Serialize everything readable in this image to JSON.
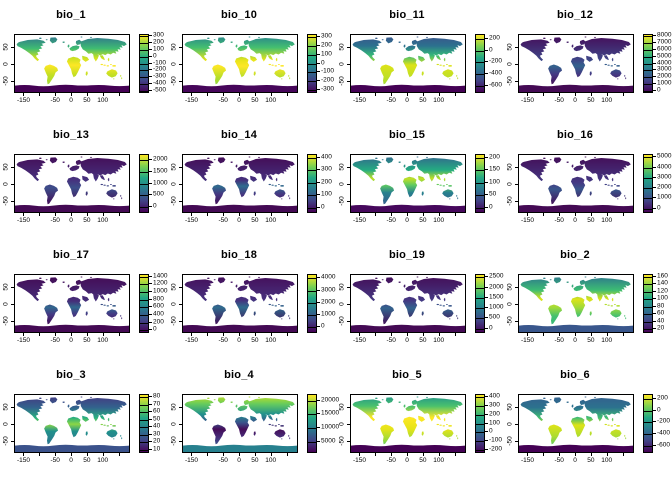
{
  "figure": {
    "background": "#ffffff",
    "grid_rows": 4,
    "grid_cols": 4
  },
  "axes": {
    "x_tick_labels": [
      "-150",
      "-50",
      "0",
      "50",
      "100"
    ],
    "x_tick_lons": [
      -150,
      -50,
      0,
      50,
      100
    ],
    "x_tick_marks": [
      -150,
      -100,
      -50,
      0,
      50,
      100,
      150
    ],
    "y_tick_labels": [
      "50",
      "0",
      "-50"
    ],
    "y_tick_lats": [
      50,
      0,
      -50
    ],
    "xlim": [
      -180,
      180
    ],
    "ylim": [
      -80,
      90
    ]
  },
  "palette": {
    "name": "viridis",
    "legend_stops": [
      "#fde725",
      "#7ad151",
      "#22a884",
      "#2a788e",
      "#414487",
      "#440154"
    ]
  },
  "chart_data": [
    {
      "type": "heatmap",
      "title": "bio_1",
      "legend_position": "right",
      "legend_ticks": [
        "300",
        "200",
        "100",
        "0",
        "-100",
        "-200",
        "-300",
        "-400",
        "-500"
      ],
      "tick_span": [
        0.02,
        0.98
      ],
      "land_gradient": [
        [
          0,
          "#2e6e8e"
        ],
        [
          0.27,
          "#3fbc73"
        ],
        [
          0.45,
          "#c8e020"
        ],
        [
          0.6,
          "#fde725"
        ],
        [
          0.8,
          "#c2df23"
        ],
        [
          1,
          "#9fda3a"
        ]
      ],
      "antarctica_color": "#440154"
    },
    {
      "type": "heatmap",
      "title": "bio_10",
      "legend_position": "right",
      "legend_ticks": [
        "300",
        "200",
        "100",
        "0",
        "-100",
        "-200",
        "-300"
      ],
      "tick_span": [
        0.03,
        0.97
      ],
      "land_gradient": [
        [
          0,
          "#27808e"
        ],
        [
          0.25,
          "#44bf70"
        ],
        [
          0.5,
          "#e7e419"
        ],
        [
          0.62,
          "#fde725"
        ],
        [
          0.85,
          "#b5de2b"
        ],
        [
          1,
          "#8bd646"
        ]
      ],
      "antarctica_color": "#46065a"
    },
    {
      "type": "heatmap",
      "title": "bio_11",
      "legend_position": "right",
      "legend_ticks": [
        "200",
        "0",
        "-200",
        "-400",
        "-600"
      ],
      "tick_span": [
        0.07,
        0.89
      ],
      "land_gradient": [
        [
          0,
          "#3b528b"
        ],
        [
          0.22,
          "#2c728e"
        ],
        [
          0.4,
          "#35b779"
        ],
        [
          0.6,
          "#dde318"
        ],
        [
          0.85,
          "#bddf26"
        ],
        [
          1,
          "#9fda3a"
        ]
      ],
      "antarctica_color": "#440154"
    },
    {
      "type": "heatmap",
      "title": "bio_12",
      "legend_position": "right",
      "legend_ticks": [
        "8000",
        "7000",
        "6000",
        "5000",
        "4000",
        "3000",
        "2000",
        "1000",
        "0"
      ],
      "tick_span": [
        0.02,
        0.98
      ],
      "land_gradient": [
        [
          0,
          "#450c59"
        ],
        [
          0.5,
          "#3f4788"
        ],
        [
          0.62,
          "#33638d"
        ],
        [
          0.78,
          "#443983"
        ],
        [
          1,
          "#440a54"
        ]
      ],
      "antarctica_color": "#440a54"
    },
    {
      "type": "heatmap",
      "title": "bio_13",
      "legend_position": "right",
      "legend_ticks": [
        "2000",
        "1500",
        "1000",
        "500",
        "0"
      ],
      "tick_span": [
        0.08,
        0.92
      ],
      "land_gradient": [
        [
          0,
          "#440c56"
        ],
        [
          0.5,
          "#46327e"
        ],
        [
          0.65,
          "#3d4e8a"
        ],
        [
          1,
          "#440a54"
        ]
      ],
      "antarctica_color": "#440a54"
    },
    {
      "type": "heatmap",
      "title": "bio_14",
      "legend_position": "right",
      "legend_ticks": [
        "400",
        "300",
        "200",
        "100",
        "0"
      ],
      "tick_span": [
        0.05,
        0.93
      ],
      "land_gradient": [
        [
          0,
          "#440a54"
        ],
        [
          0.5,
          "#45307c"
        ],
        [
          0.62,
          "#2f6c8e"
        ],
        [
          0.78,
          "#453781"
        ],
        [
          1,
          "#440a54"
        ]
      ],
      "antarctica_color": "#440a54"
    },
    {
      "type": "heatmap",
      "title": "bio_15",
      "legend_position": "right",
      "legend_ticks": [
        "200",
        "150",
        "100",
        "50",
        "0"
      ],
      "tick_span": [
        0.05,
        0.93
      ],
      "land_gradient": [
        [
          0,
          "#33638d"
        ],
        [
          0.3,
          "#25ab82"
        ],
        [
          0.47,
          "#c0df25"
        ],
        [
          0.6,
          "#5ec962"
        ],
        [
          0.75,
          "#27808e"
        ],
        [
          1,
          "#365c8d"
        ]
      ],
      "antarctica_color": "#46085c"
    },
    {
      "type": "heatmap",
      "title": "bio_16",
      "legend_position": "right",
      "legend_ticks": [
        "5000",
        "4000",
        "3000",
        "2000",
        "1000",
        "0"
      ],
      "tick_span": [
        0.04,
        0.94
      ],
      "land_gradient": [
        [
          0,
          "#440c56"
        ],
        [
          0.55,
          "#443983"
        ],
        [
          0.68,
          "#39568c"
        ],
        [
          1,
          "#440a54"
        ]
      ],
      "antarctica_color": "#440a54"
    },
    {
      "type": "heatmap",
      "title": "bio_17",
      "legend_position": "right",
      "legend_ticks": [
        "1400",
        "1200",
        "1000",
        "800",
        "600",
        "400",
        "200",
        "0"
      ],
      "tick_span": [
        0.03,
        0.97
      ],
      "land_gradient": [
        [
          0,
          "#440a54"
        ],
        [
          0.52,
          "#452e79"
        ],
        [
          0.64,
          "#31688e"
        ],
        [
          0.78,
          "#443983"
        ],
        [
          1,
          "#440a54"
        ]
      ],
      "antarctica_color": "#440a54"
    },
    {
      "type": "heatmap",
      "title": "bio_18",
      "legend_position": "right",
      "legend_ticks": [
        "4000",
        "3000",
        "2000",
        "1000",
        "0"
      ],
      "tick_span": [
        0.06,
        0.92
      ],
      "land_gradient": [
        [
          0,
          "#450d59"
        ],
        [
          0.5,
          "#46327e"
        ],
        [
          0.64,
          "#2f6c8e"
        ],
        [
          1,
          "#440a54"
        ]
      ],
      "antarctica_color": "#440a54"
    },
    {
      "type": "heatmap",
      "title": "bio_19",
      "legend_position": "right",
      "legend_ticks": [
        "2500",
        "2000",
        "1500",
        "1000",
        "500",
        "0"
      ],
      "tick_span": [
        0.04,
        0.94
      ],
      "land_gradient": [
        [
          0,
          "#440c56"
        ],
        [
          0.5,
          "#453882"
        ],
        [
          0.66,
          "#33638d"
        ],
        [
          1,
          "#440a54"
        ]
      ],
      "antarctica_color": "#440a54"
    },
    {
      "type": "heatmap",
      "title": "bio_2",
      "legend_position": "right",
      "legend_ticks": [
        "160",
        "140",
        "120",
        "100",
        "80",
        "60",
        "40",
        "20"
      ],
      "tick_span": [
        0.03,
        0.95
      ],
      "land_gradient": [
        [
          0,
          "#2c728e"
        ],
        [
          0.3,
          "#3dbc74"
        ],
        [
          0.48,
          "#dde318"
        ],
        [
          0.65,
          "#9fda3a"
        ],
        [
          0.82,
          "#44bf70"
        ],
        [
          1,
          "#35b779"
        ]
      ],
      "antarctica_color": "#39568c"
    },
    {
      "type": "heatmap",
      "title": "bio_3",
      "legend_position": "right",
      "legend_ticks": [
        "80",
        "70",
        "60",
        "50",
        "40",
        "30",
        "20",
        "10"
      ],
      "tick_span": [
        0.04,
        0.96
      ],
      "land_gradient": [
        [
          0,
          "#453781"
        ],
        [
          0.25,
          "#33638d"
        ],
        [
          0.45,
          "#28ae80"
        ],
        [
          0.58,
          "#8bd646"
        ],
        [
          0.72,
          "#21918c"
        ],
        [
          1,
          "#2c728e"
        ]
      ],
      "antarctica_color": "#3b528b"
    },
    {
      "type": "heatmap",
      "title": "bio_4",
      "legend_position": "right",
      "legend_ticks": [
        "20000",
        "15000",
        "10000",
        "5000"
      ],
      "tick_span": [
        0.1,
        0.82
      ],
      "land_gradient": [
        [
          0,
          "#c8e020"
        ],
        [
          0.18,
          "#65cb5e"
        ],
        [
          0.38,
          "#21918c"
        ],
        [
          0.55,
          "#3b528b"
        ],
        [
          0.68,
          "#450d59"
        ],
        [
          0.85,
          "#462f7c"
        ],
        [
          1,
          "#39568c"
        ]
      ],
      "antarctica_color": "#27808e"
    },
    {
      "type": "heatmap",
      "title": "bio_5",
      "legend_position": "right",
      "legend_ticks": [
        "400",
        "300",
        "200",
        "100",
        "0",
        "-100",
        "-200"
      ],
      "tick_span": [
        0.03,
        0.97
      ],
      "land_gradient": [
        [
          0,
          "#21918c"
        ],
        [
          0.22,
          "#4ac16d"
        ],
        [
          0.45,
          "#fde725"
        ],
        [
          0.68,
          "#e5e419"
        ],
        [
          0.88,
          "#a0da39"
        ],
        [
          1,
          "#5ec962"
        ]
      ],
      "antarctica_color": "#440154"
    },
    {
      "type": "heatmap",
      "title": "bio_6",
      "legend_position": "right",
      "legend_ticks": [
        "200",
        "0",
        "-200",
        "-400",
        "-600"
      ],
      "tick_span": [
        0.07,
        0.89
      ],
      "land_gradient": [
        [
          0,
          "#355e8d"
        ],
        [
          0.25,
          "#2c728e"
        ],
        [
          0.45,
          "#3fbc73"
        ],
        [
          0.6,
          "#dde318"
        ],
        [
          0.82,
          "#addc30"
        ],
        [
          1,
          "#5ec962"
        ]
      ],
      "antarctica_color": "#440154"
    }
  ]
}
